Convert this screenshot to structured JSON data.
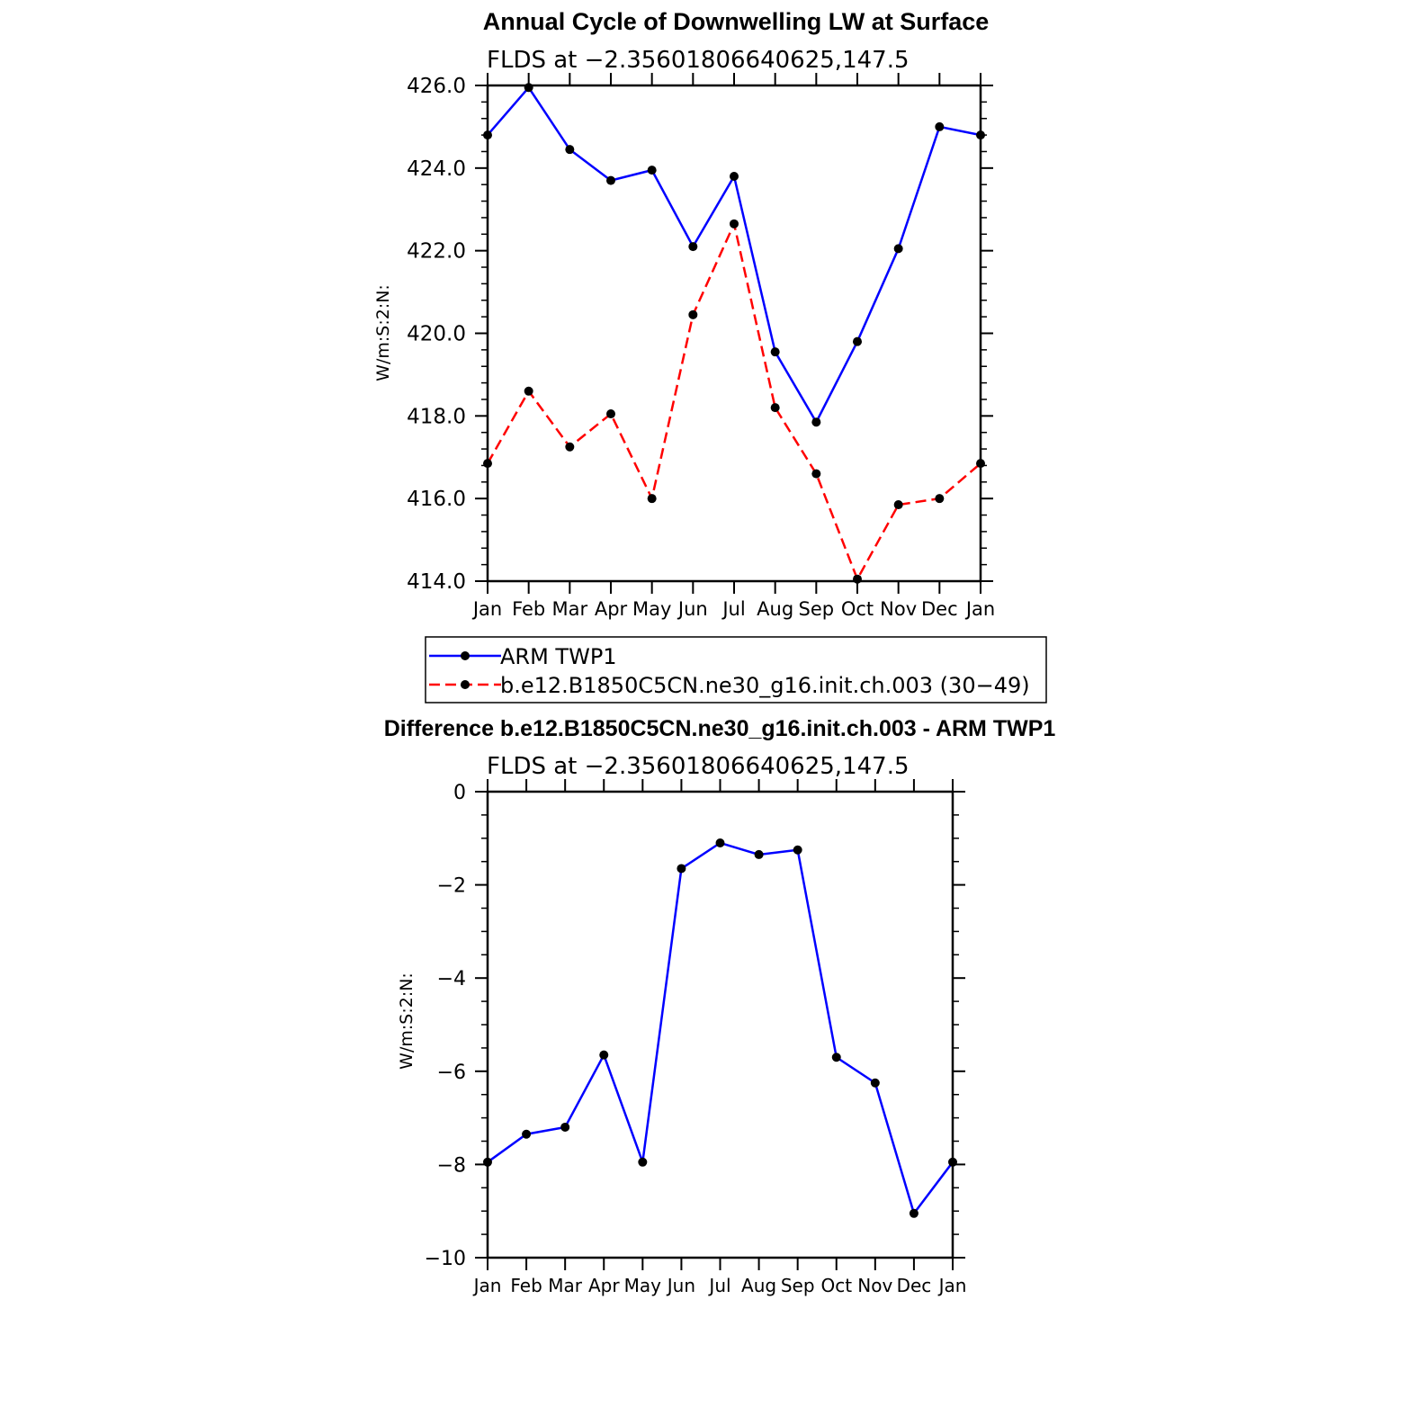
{
  "chart_data": [
    {
      "type": "line",
      "title": "Annual Cycle of Downwelling LW at Surface",
      "subtitle": "FLDS at −2.35601806640625,147.5",
      "xlabel": "",
      "ylabel": "W/m:S:2:N:",
      "categories": [
        "Jan",
        "Feb",
        "Mar",
        "Apr",
        "May",
        "Jun",
        "Jul",
        "Aug",
        "Sep",
        "Oct",
        "Nov",
        "Dec",
        "Jan"
      ],
      "ylim": [
        414,
        426
      ],
      "yticks": [
        414,
        416,
        418,
        420,
        422,
        424,
        426
      ],
      "ytick_labels": [
        "414.0",
        "416.0",
        "418.0",
        "420.0",
        "422.0",
        "424.0",
        "426.0"
      ],
      "series": [
        {
          "name": "ARM TWP1",
          "color": "#0000ff",
          "dash": "solid",
          "values": [
            424.8,
            425.95,
            424.45,
            423.7,
            423.95,
            422.1,
            423.8,
            419.55,
            417.85,
            419.8,
            422.05,
            425.0,
            424.8
          ]
        },
        {
          "name": "b.e12.B1850C5CN.ne30_g16.init.ch.003 (30−49)",
          "color": "#ff0000",
          "dash": "dashed",
          "values": [
            416.85,
            418.6,
            417.25,
            418.05,
            416.0,
            420.45,
            422.65,
            418.2,
            416.6,
            414.05,
            415.85,
            416.0,
            416.85
          ]
        }
      ],
      "legend": "below"
    },
    {
      "type": "line",
      "title": "Difference b.e12.B1850C5CN.ne30_g16.init.ch.003 - ARM TWP1",
      "subtitle": "FLDS at −2.35601806640625,147.5",
      "xlabel": "",
      "ylabel": "W/m:S:2:N:",
      "categories": [
        "Jan",
        "Feb",
        "Mar",
        "Apr",
        "May",
        "Jun",
        "Jul",
        "Aug",
        "Sep",
        "Oct",
        "Nov",
        "Dec",
        "Jan"
      ],
      "ylim": [
        -10,
        0
      ],
      "yticks": [
        -10,
        -8,
        -6,
        -4,
        -2,
        0
      ],
      "ytick_labels": [
        "−10",
        "−8",
        "−6",
        "−4",
        "−2",
        "0"
      ],
      "series": [
        {
          "name": "Difference",
          "color": "#0000ff",
          "dash": "solid",
          "values": [
            -7.95,
            -7.35,
            -7.2,
            -5.65,
            -7.95,
            -1.65,
            -1.1,
            -1.35,
            -1.25,
            -5.7,
            -6.25,
            -9.05,
            -7.95
          ]
        }
      ]
    }
  ]
}
